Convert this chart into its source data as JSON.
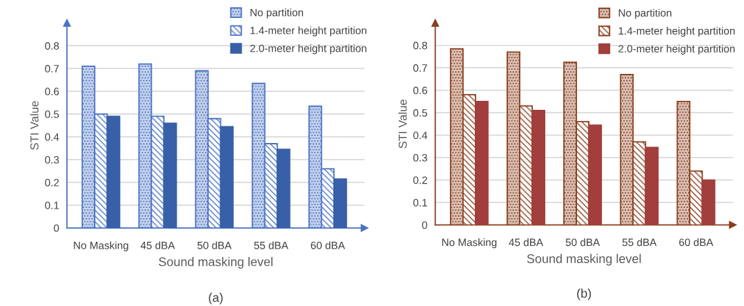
{
  "chart_data": [
    {
      "type": "bar",
      "xlabel": "Sound masking level",
      "ylabel": "STI Value",
      "categories": [
        "No Masking",
        "45 dBA",
        "50 dBA",
        "55 dBA",
        "60 dBA"
      ],
      "series": [
        {
          "name": "No partition",
          "color": "#4a72c4",
          "values": [
            0.71,
            0.72,
            0.69,
            0.635,
            0.535
          ]
        },
        {
          "name": "1.4-meter height partition",
          "color": "#4a72c4",
          "values": [
            0.5,
            0.49,
            0.48,
            0.37,
            0.26
          ]
        },
        {
          "name": "2.0-meter height partition",
          "color": "#3760a8",
          "values": [
            0.49,
            0.46,
            0.445,
            0.345,
            0.215
          ]
        }
      ],
      "ylim": [
        0,
        0.9
      ],
      "yticks": [
        0,
        0.1,
        0.2,
        0.3,
        0.4,
        0.5,
        0.6,
        0.7,
        0.8
      ],
      "grid": "y",
      "legend": "top right",
      "annotations": [
        "(a)"
      ]
    },
    {
      "type": "bar",
      "xlabel": "Sound masking level",
      "ylabel": "STI Value",
      "categories": [
        "No Masking",
        "45 dBA",
        "50 dBA",
        "55 dBA",
        "60 dBA"
      ],
      "series": [
        {
          "name": "No partition",
          "color": "#8a3d1c",
          "values": [
            0.785,
            0.77,
            0.725,
            0.67,
            0.55
          ]
        },
        {
          "name": "1.4-meter height partition",
          "color": "#8a3d1c",
          "values": [
            0.58,
            0.53,
            0.46,
            0.37,
            0.24
          ]
        },
        {
          "name": "2.0-meter height partition",
          "color": "#a23e3b",
          "values": [
            0.55,
            0.51,
            0.445,
            0.345,
            0.2
          ]
        }
      ],
      "ylim": [
        0,
        0.9
      ],
      "yticks": [
        0,
        0.1,
        0.2,
        0.3,
        0.4,
        0.5,
        0.6,
        0.7,
        0.8
      ],
      "grid": "y",
      "legend": "top right",
      "annotations": [
        "(b)"
      ]
    }
  ]
}
